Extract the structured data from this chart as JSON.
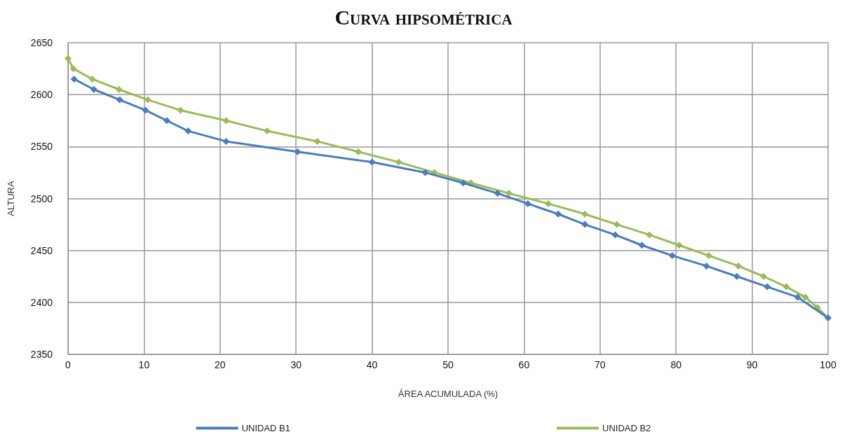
{
  "chart_data": {
    "type": "line",
    "title": "Curva hipsométrica",
    "xlabel": "ÁREA ACUMULADA (%)",
    "ylabel": "ALTURA",
    "xlim": [
      0,
      100
    ],
    "xticks": [
      0,
      10,
      20,
      30,
      40,
      50,
      60,
      70,
      80,
      90,
      100
    ],
    "ylim": [
      2350,
      2650
    ],
    "yticks": [
      2350,
      2400,
      2450,
      2500,
      2550,
      2600,
      2650
    ],
    "grid": true,
    "legend": "bottom",
    "marker": "diamond",
    "line_style": "solid",
    "series": [
      {
        "name": "UNIDAD B1",
        "color": "#4a7ebb",
        "x": [
          0.8,
          3.4,
          6.8,
          10.2,
          13,
          15.8,
          20.8,
          30.2,
          40,
          47,
          52,
          56.5,
          60.5,
          64.5,
          68,
          72,
          75.5,
          79.5,
          84,
          88,
          92,
          96,
          100
        ],
        "values": [
          2615,
          2605,
          2595,
          2585,
          2575,
          2565,
          2555,
          2545,
          2535,
          2525,
          2515,
          2505,
          2495,
          2485,
          2475,
          2465,
          2455,
          2445,
          2435,
          2425,
          2415,
          2405,
          2385
        ]
      },
      {
        "name": "UNIDAD B2",
        "color": "#9bbb59",
        "x": [
          0,
          0.7,
          3.2,
          6.7,
          10.5,
          14.8,
          20.8,
          26.2,
          32.8,
          38.2,
          43.5,
          48.2,
          53,
          58,
          63.2,
          68,
          72.2,
          76.5,
          80.4,
          84.3,
          88.2,
          91.5,
          94.5,
          97,
          98.6,
          100
        ],
        "values": [
          2635,
          2625,
          2615,
          2605,
          2595,
          2585,
          2575,
          2565,
          2555,
          2545,
          2535,
          2525,
          2515,
          2505,
          2495,
          2485,
          2475,
          2465,
          2455,
          2445,
          2435,
          2425,
          2415,
          2405,
          2395,
          2385
        ]
      }
    ]
  }
}
